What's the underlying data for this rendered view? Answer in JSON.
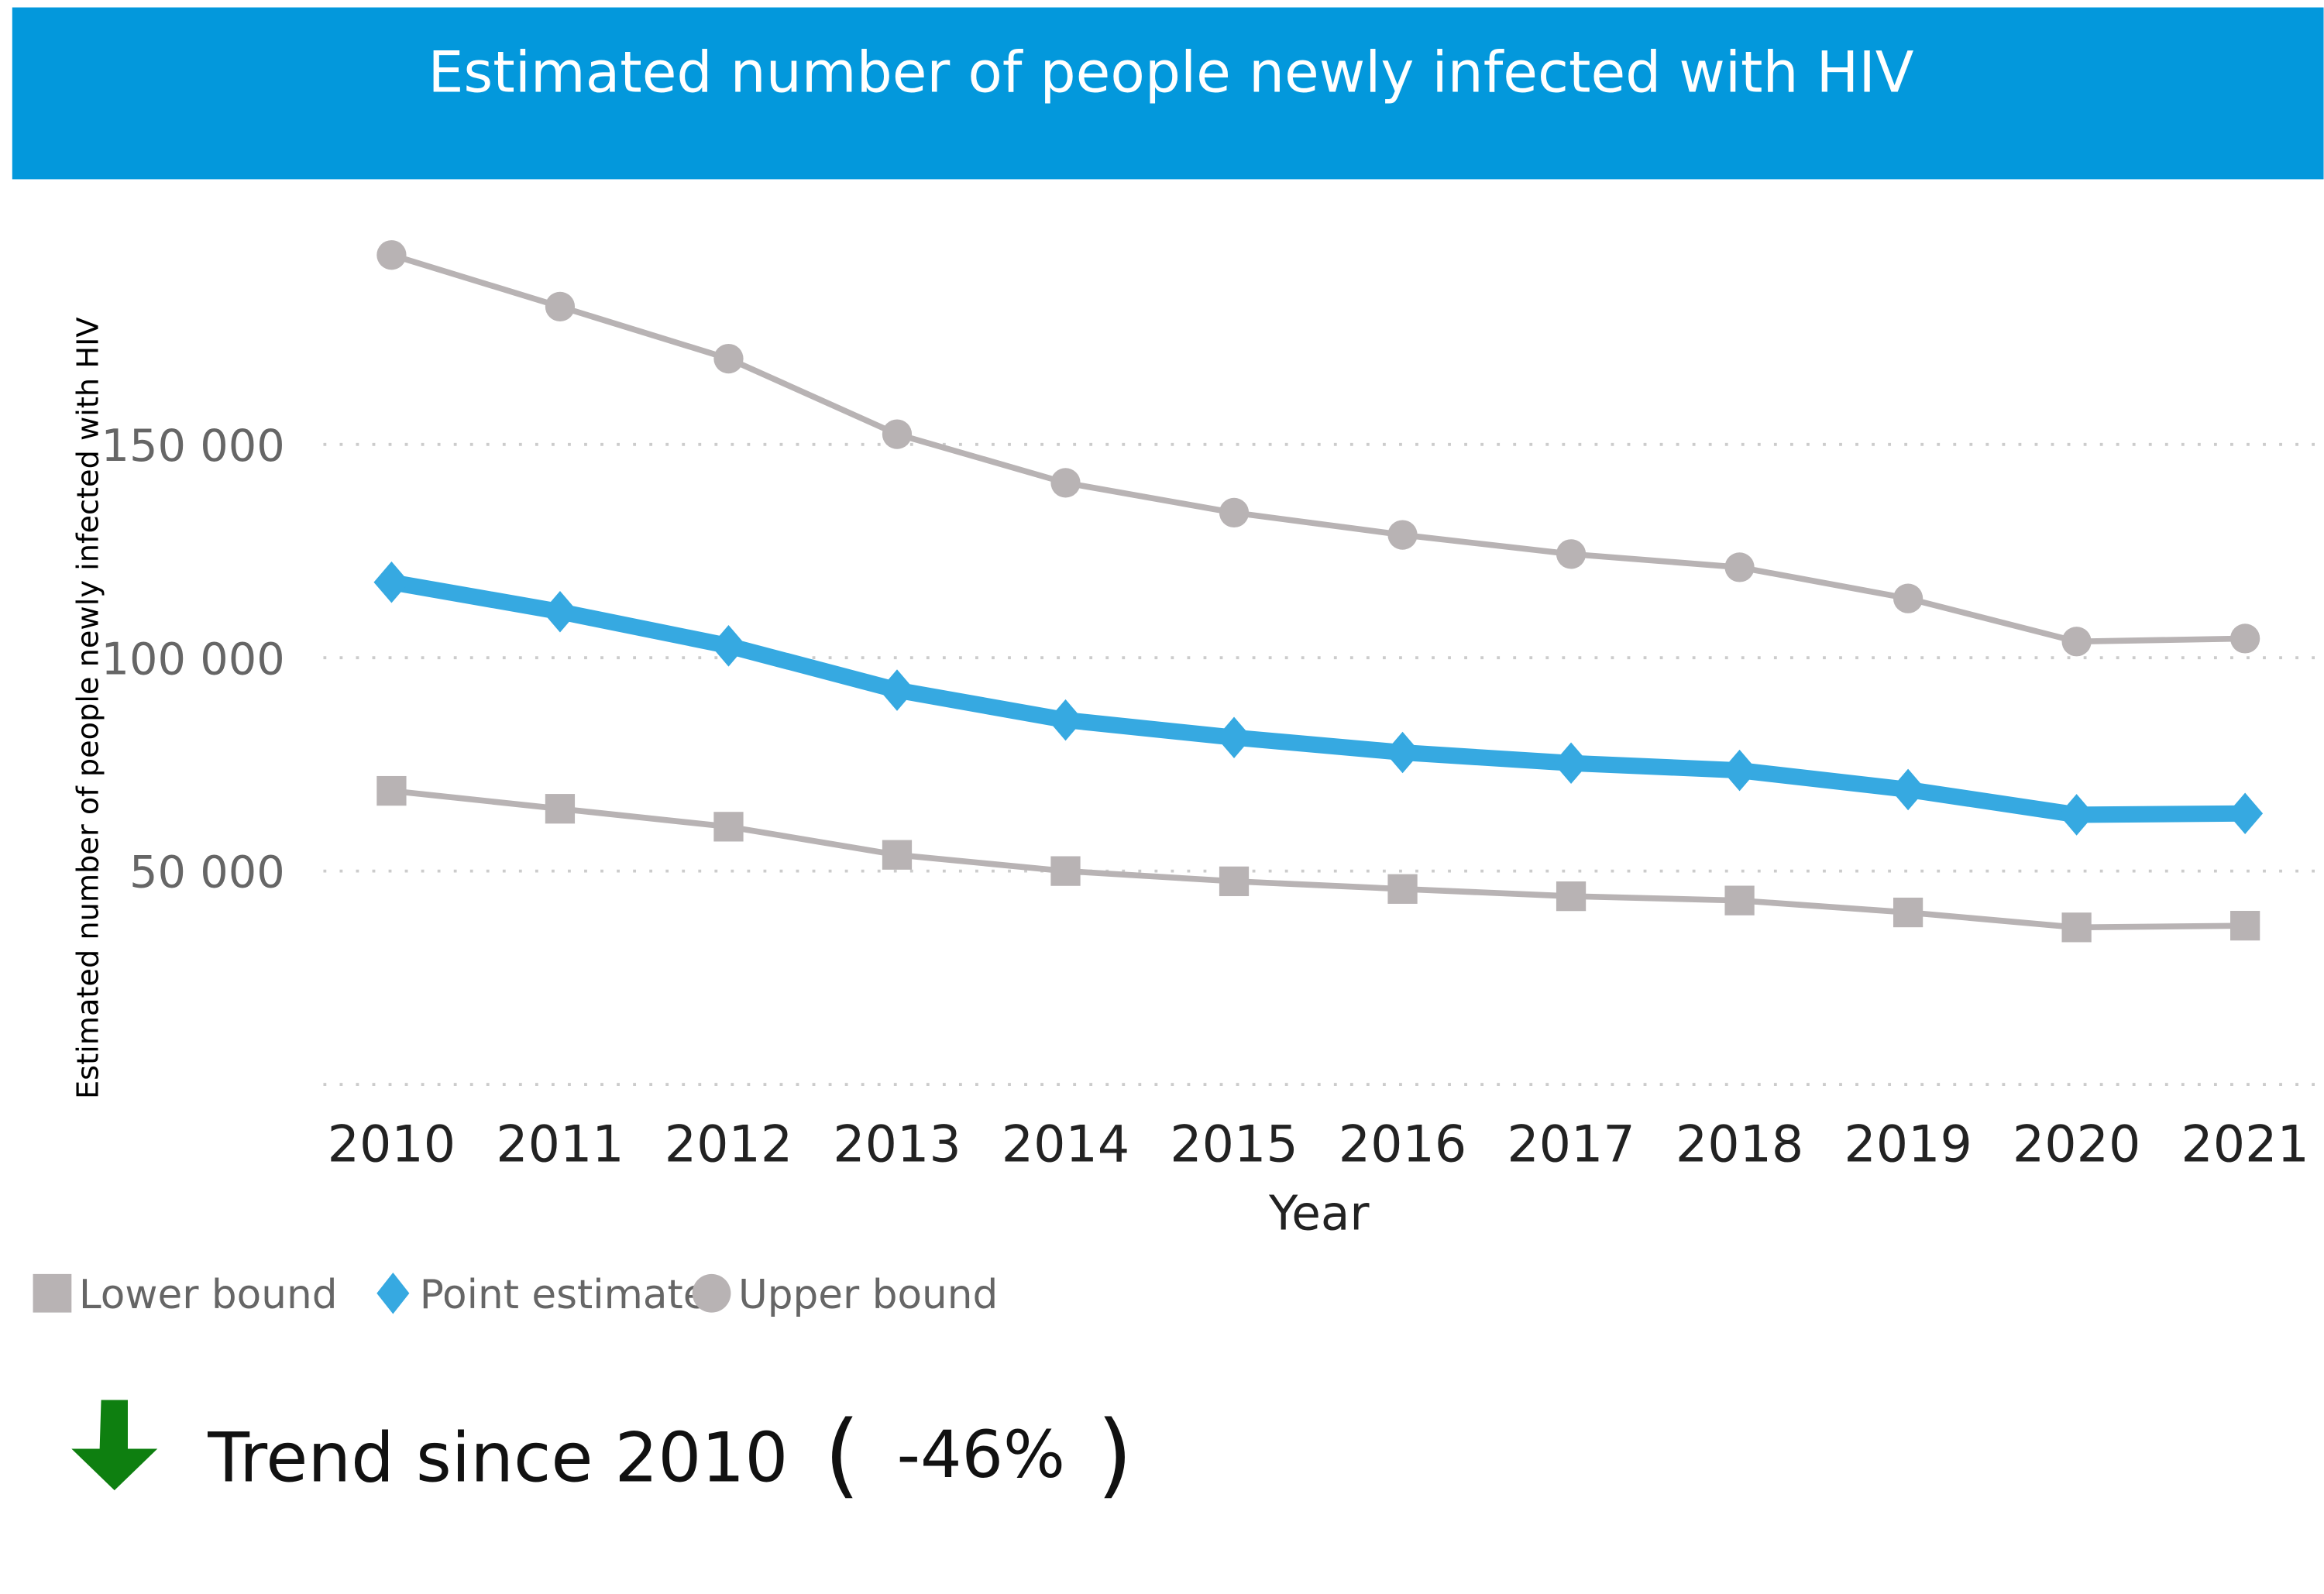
{
  "header": {
    "title": "Estimated number of people newly infected with HIV",
    "background": "#0398DC"
  },
  "chart_data": {
    "type": "line",
    "title": "Estimated number of people newly infected with HIV",
    "xlabel": "Year",
    "ylabel": "Estimated number of people newly infected with HIV",
    "categories": [
      "2010",
      "2011",
      "2012",
      "2013",
      "2014",
      "2015",
      "2016",
      "2017",
      "2018",
      "2019",
      "2020",
      "2021"
    ],
    "ylim": [
      0,
      195000
    ],
    "yticks": [
      {
        "value": 50000,
        "label": "50 000"
      },
      {
        "value": 100000,
        "label": "100 000"
      },
      {
        "value": 150000,
        "label": "150 000"
      }
    ],
    "grid": "horizontal dotted",
    "legend_position": "bottom-left",
    "series": [
      {
        "name": "Lower bound",
        "marker": "square",
        "color": "#B8B3B4",
        "values": [
          68800,
          64600,
          60400,
          53800,
          50000,
          47600,
          45800,
          44100,
          43100,
          40300,
          36800,
          37200
        ]
      },
      {
        "name": "Point estimate",
        "marker": "diamond",
        "color": "#36A9E1",
        "values": [
          117700,
          110800,
          102800,
          92400,
          85400,
          81300,
          77800,
          75300,
          73600,
          69100,
          63200,
          63500
        ]
      },
      {
        "name": "Upper bound",
        "marker": "circle",
        "color": "#B8B3B4",
        "values": [
          194400,
          182300,
          170100,
          152400,
          141000,
          134000,
          128800,
          124300,
          121200,
          113900,
          103800,
          104500
        ]
      }
    ]
  },
  "trend": {
    "label": "Trend since 2010",
    "open_paren": "(",
    "value": "-46%",
    "close_paren": ")",
    "arrow_color": "#0E7F10",
    "direction": "down"
  }
}
